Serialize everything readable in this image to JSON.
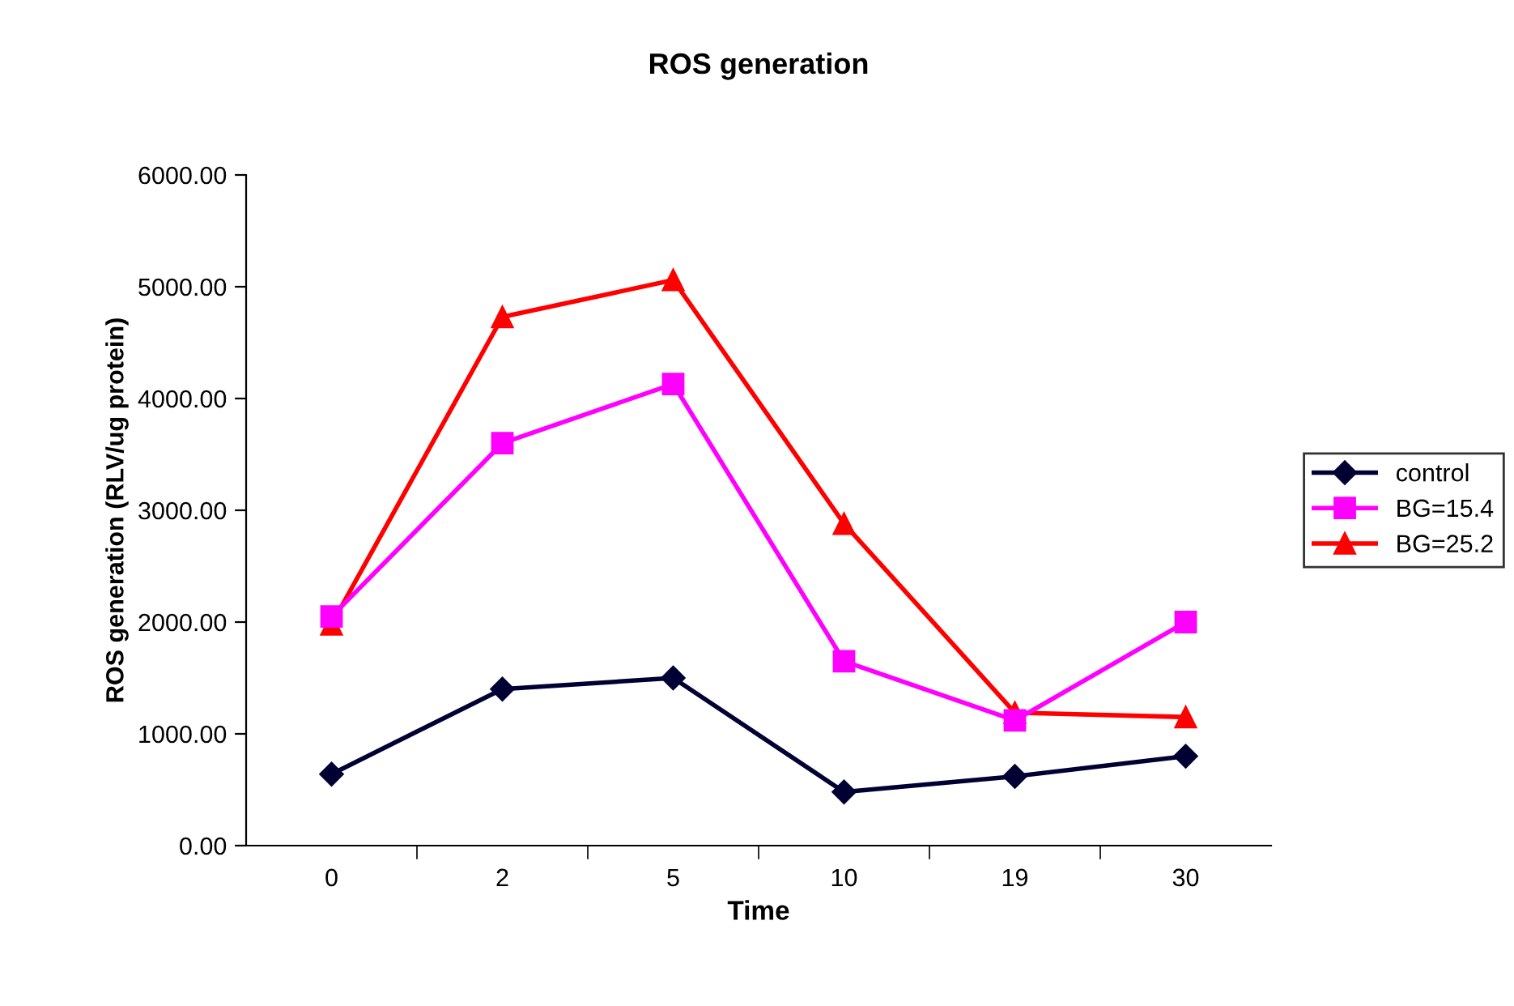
{
  "chart_data": {
    "type": "line",
    "title": "ROS generation",
    "xlabel": "Time",
    "ylabel": "ROS generation (RLV/ug protein)",
    "categories": [
      "0",
      "2",
      "5",
      "10",
      "19",
      "30"
    ],
    "series": [
      {
        "name": "control",
        "color": "#000033",
        "marker": "diamond",
        "values": [
          640,
          1400,
          1500,
          480,
          620,
          800
        ]
      },
      {
        "name": "BG=15.4",
        "color": "#ff00ff",
        "marker": "square",
        "values": [
          2050,
          3600,
          4130,
          1650,
          1120,
          2000
        ]
      },
      {
        "name": "BG=25.2",
        "color": "#ff0000",
        "marker": "triangle",
        "values": [
          1980,
          4730,
          5060,
          2880,
          1190,
          1150
        ]
      }
    ],
    "ylim": [
      0,
      6000
    ],
    "yticks": [
      {
        "value": 0,
        "label": "0.00"
      },
      {
        "value": 1000,
        "label": "1000.00"
      },
      {
        "value": 2000,
        "label": "2000.00"
      },
      {
        "value": 3000,
        "label": "3000.00"
      },
      {
        "value": 4000,
        "label": "4000.00"
      },
      {
        "value": 5000,
        "label": "5000.00"
      },
      {
        "value": 6000,
        "label": "6000.00"
      }
    ],
    "grid": false,
    "legend": "right"
  }
}
